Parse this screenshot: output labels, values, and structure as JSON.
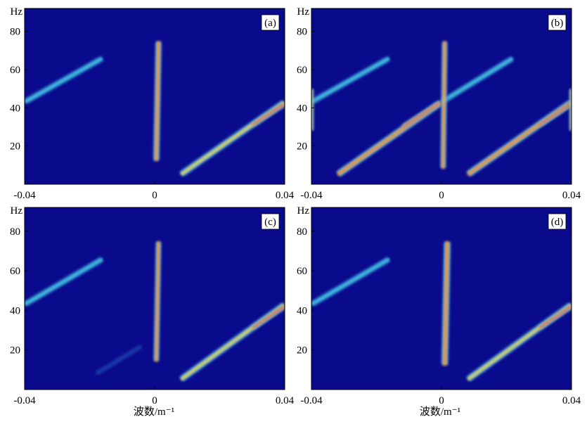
{
  "chart_data": [
    {
      "type": "heatmap",
      "panel_label": "(a)",
      "ylabel": "Hz",
      "xlabel": "",
      "xlim": [
        -0.04,
        0.04
      ],
      "ylim": [
        0,
        92
      ],
      "x_ticks": [
        {
          "value": -0.04,
          "label": "-0.04"
        },
        {
          "value": 0,
          "label": "0"
        },
        {
          "value": 0.04,
          "label": "0.04"
        }
      ],
      "y_ticks": [
        {
          "value": 20,
          "label": "20"
        },
        {
          "value": 40,
          "label": "40"
        },
        {
          "value": 60,
          "label": "60"
        },
        {
          "value": 80,
          "label": "80"
        }
      ],
      "features": [
        {
          "x0": -0.04,
          "y0": 43,
          "x1": -0.016,
          "y1": 66,
          "width": 0.001,
          "peak": 0.5
        },
        {
          "x0": 0.008,
          "y0": 5,
          "x1": 0.04,
          "y1": 43,
          "width": 0.0011,
          "peak": 0.72
        },
        {
          "x0": 0.03,
          "y0": 31,
          "x1": 0.04,
          "y1": 42,
          "width": 0.0007,
          "peak": 1.0
        },
        {
          "x0": 0.0005,
          "y0": 12,
          "x1": 0.0012,
          "y1": 75,
          "width": 0.001,
          "peak": 0.8
        }
      ]
    },
    {
      "type": "heatmap",
      "panel_label": "(b)",
      "ylabel": "Hz",
      "xlabel": "",
      "xlim": [
        -0.04,
        0.04
      ],
      "ylim": [
        0,
        92
      ],
      "x_ticks": [
        {
          "value": -0.04,
          "label": "-0.04"
        },
        {
          "value": 0,
          "label": "0"
        },
        {
          "value": 0.04,
          "label": "0.04"
        }
      ],
      "y_ticks": [
        {
          "value": 20,
          "label": "20"
        },
        {
          "value": 40,
          "label": "40"
        },
        {
          "value": 60,
          "label": "60"
        },
        {
          "value": 80,
          "label": "80"
        }
      ],
      "features": [
        {
          "x0": -0.04,
          "y0": 43,
          "x1": -0.016,
          "y1": 66,
          "width": 0.001,
          "peak": 0.55
        },
        {
          "x0": -0.032,
          "y0": 5,
          "x1": 0.0,
          "y1": 43,
          "width": 0.0011,
          "peak": 0.75
        },
        {
          "x0": -0.012,
          "y0": 30,
          "x1": -0.001,
          "y1": 42,
          "width": 0.0007,
          "peak": 1.0
        },
        {
          "x0": 0.0,
          "y0": 43,
          "x1": 0.022,
          "y1": 66,
          "width": 0.001,
          "peak": 0.5
        },
        {
          "x0": 0.008,
          "y0": 5,
          "x1": 0.04,
          "y1": 43,
          "width": 0.0011,
          "peak": 0.75
        },
        {
          "x0": 0.03,
          "y0": 31,
          "x1": 0.04,
          "y1": 42,
          "width": 0.0007,
          "peak": 1.0
        },
        {
          "x0": 0.0005,
          "y0": 8,
          "x1": 0.001,
          "y1": 75,
          "width": 0.0009,
          "peak": 0.85
        },
        {
          "x0": -0.0398,
          "y0": 28,
          "x1": -0.0398,
          "y1": 50,
          "width": 0.0005,
          "peak": 0.7
        },
        {
          "x0": 0.0398,
          "y0": 28,
          "x1": 0.0398,
          "y1": 50,
          "width": 0.0005,
          "peak": 0.65
        }
      ]
    },
    {
      "type": "heatmap",
      "panel_label": "(c)",
      "ylabel": "Hz",
      "xlabel": "",
      "xlim": [
        -0.04,
        0.04
      ],
      "ylim": [
        0,
        92
      ],
      "x_ticks": [
        {
          "value": -0.04,
          "label": "-0.04"
        },
        {
          "value": 0,
          "label": "0"
        },
        {
          "value": 0.04,
          "label": "0.04"
        }
      ],
      "y_ticks": [
        {
          "value": 20,
          "label": "20"
        },
        {
          "value": 40,
          "label": "40"
        },
        {
          "value": 60,
          "label": "60"
        },
        {
          "value": 80,
          "label": "80"
        }
      ],
      "features": [
        {
          "x0": -0.04,
          "y0": 43,
          "x1": -0.016,
          "y1": 66,
          "width": 0.001,
          "peak": 0.5
        },
        {
          "x0": 0.008,
          "y0": 5,
          "x1": 0.04,
          "y1": 43,
          "width": 0.0011,
          "peak": 0.72
        },
        {
          "x0": 0.03,
          "y0": 31,
          "x1": 0.04,
          "y1": 42,
          "width": 0.0007,
          "peak": 1.0
        },
        {
          "x0": 0.0005,
          "y0": 14,
          "x1": 0.0012,
          "y1": 75,
          "width": 0.0009,
          "peak": 0.75
        },
        {
          "x0": -0.018,
          "y0": 8,
          "x1": -0.004,
          "y1": 22,
          "width": 0.0008,
          "peak": 0.18
        }
      ]
    },
    {
      "type": "heatmap",
      "panel_label": "(d)",
      "ylabel": "Hz",
      "xlabel": "",
      "xlim": [
        -0.04,
        0.04
      ],
      "ylim": [
        0,
        92
      ],
      "x_ticks": [
        {
          "value": -0.04,
          "label": "-0.04"
        },
        {
          "value": 0,
          "label": "0"
        },
        {
          "value": 0.04,
          "label": "0.04"
        }
      ],
      "y_ticks": [
        {
          "value": 20,
          "label": "20"
        },
        {
          "value": 40,
          "label": "40"
        },
        {
          "value": 60,
          "label": "60"
        },
        {
          "value": 80,
          "label": "80"
        }
      ],
      "features": [
        {
          "x0": -0.04,
          "y0": 43,
          "x1": -0.016,
          "y1": 66,
          "width": 0.001,
          "peak": 0.5
        },
        {
          "x0": 0.008,
          "y0": 5,
          "x1": 0.04,
          "y1": 43,
          "width": 0.0011,
          "peak": 0.72
        },
        {
          "x0": 0.03,
          "y0": 31,
          "x1": 0.04,
          "y1": 42,
          "width": 0.0007,
          "peak": 1.0
        },
        {
          "x0": 0.001,
          "y0": 12,
          "x1": 0.0018,
          "y1": 75,
          "width": 0.0011,
          "peak": 0.8
        }
      ]
    }
  ],
  "bottom_xlabel": "波数/m⁻¹",
  "colormap": [
    "#0a0a8c",
    "#1a3aa8",
    "#2a7ed0",
    "#48c6e6",
    "#e8e23a",
    "#f08a1c",
    "#c8141a"
  ]
}
